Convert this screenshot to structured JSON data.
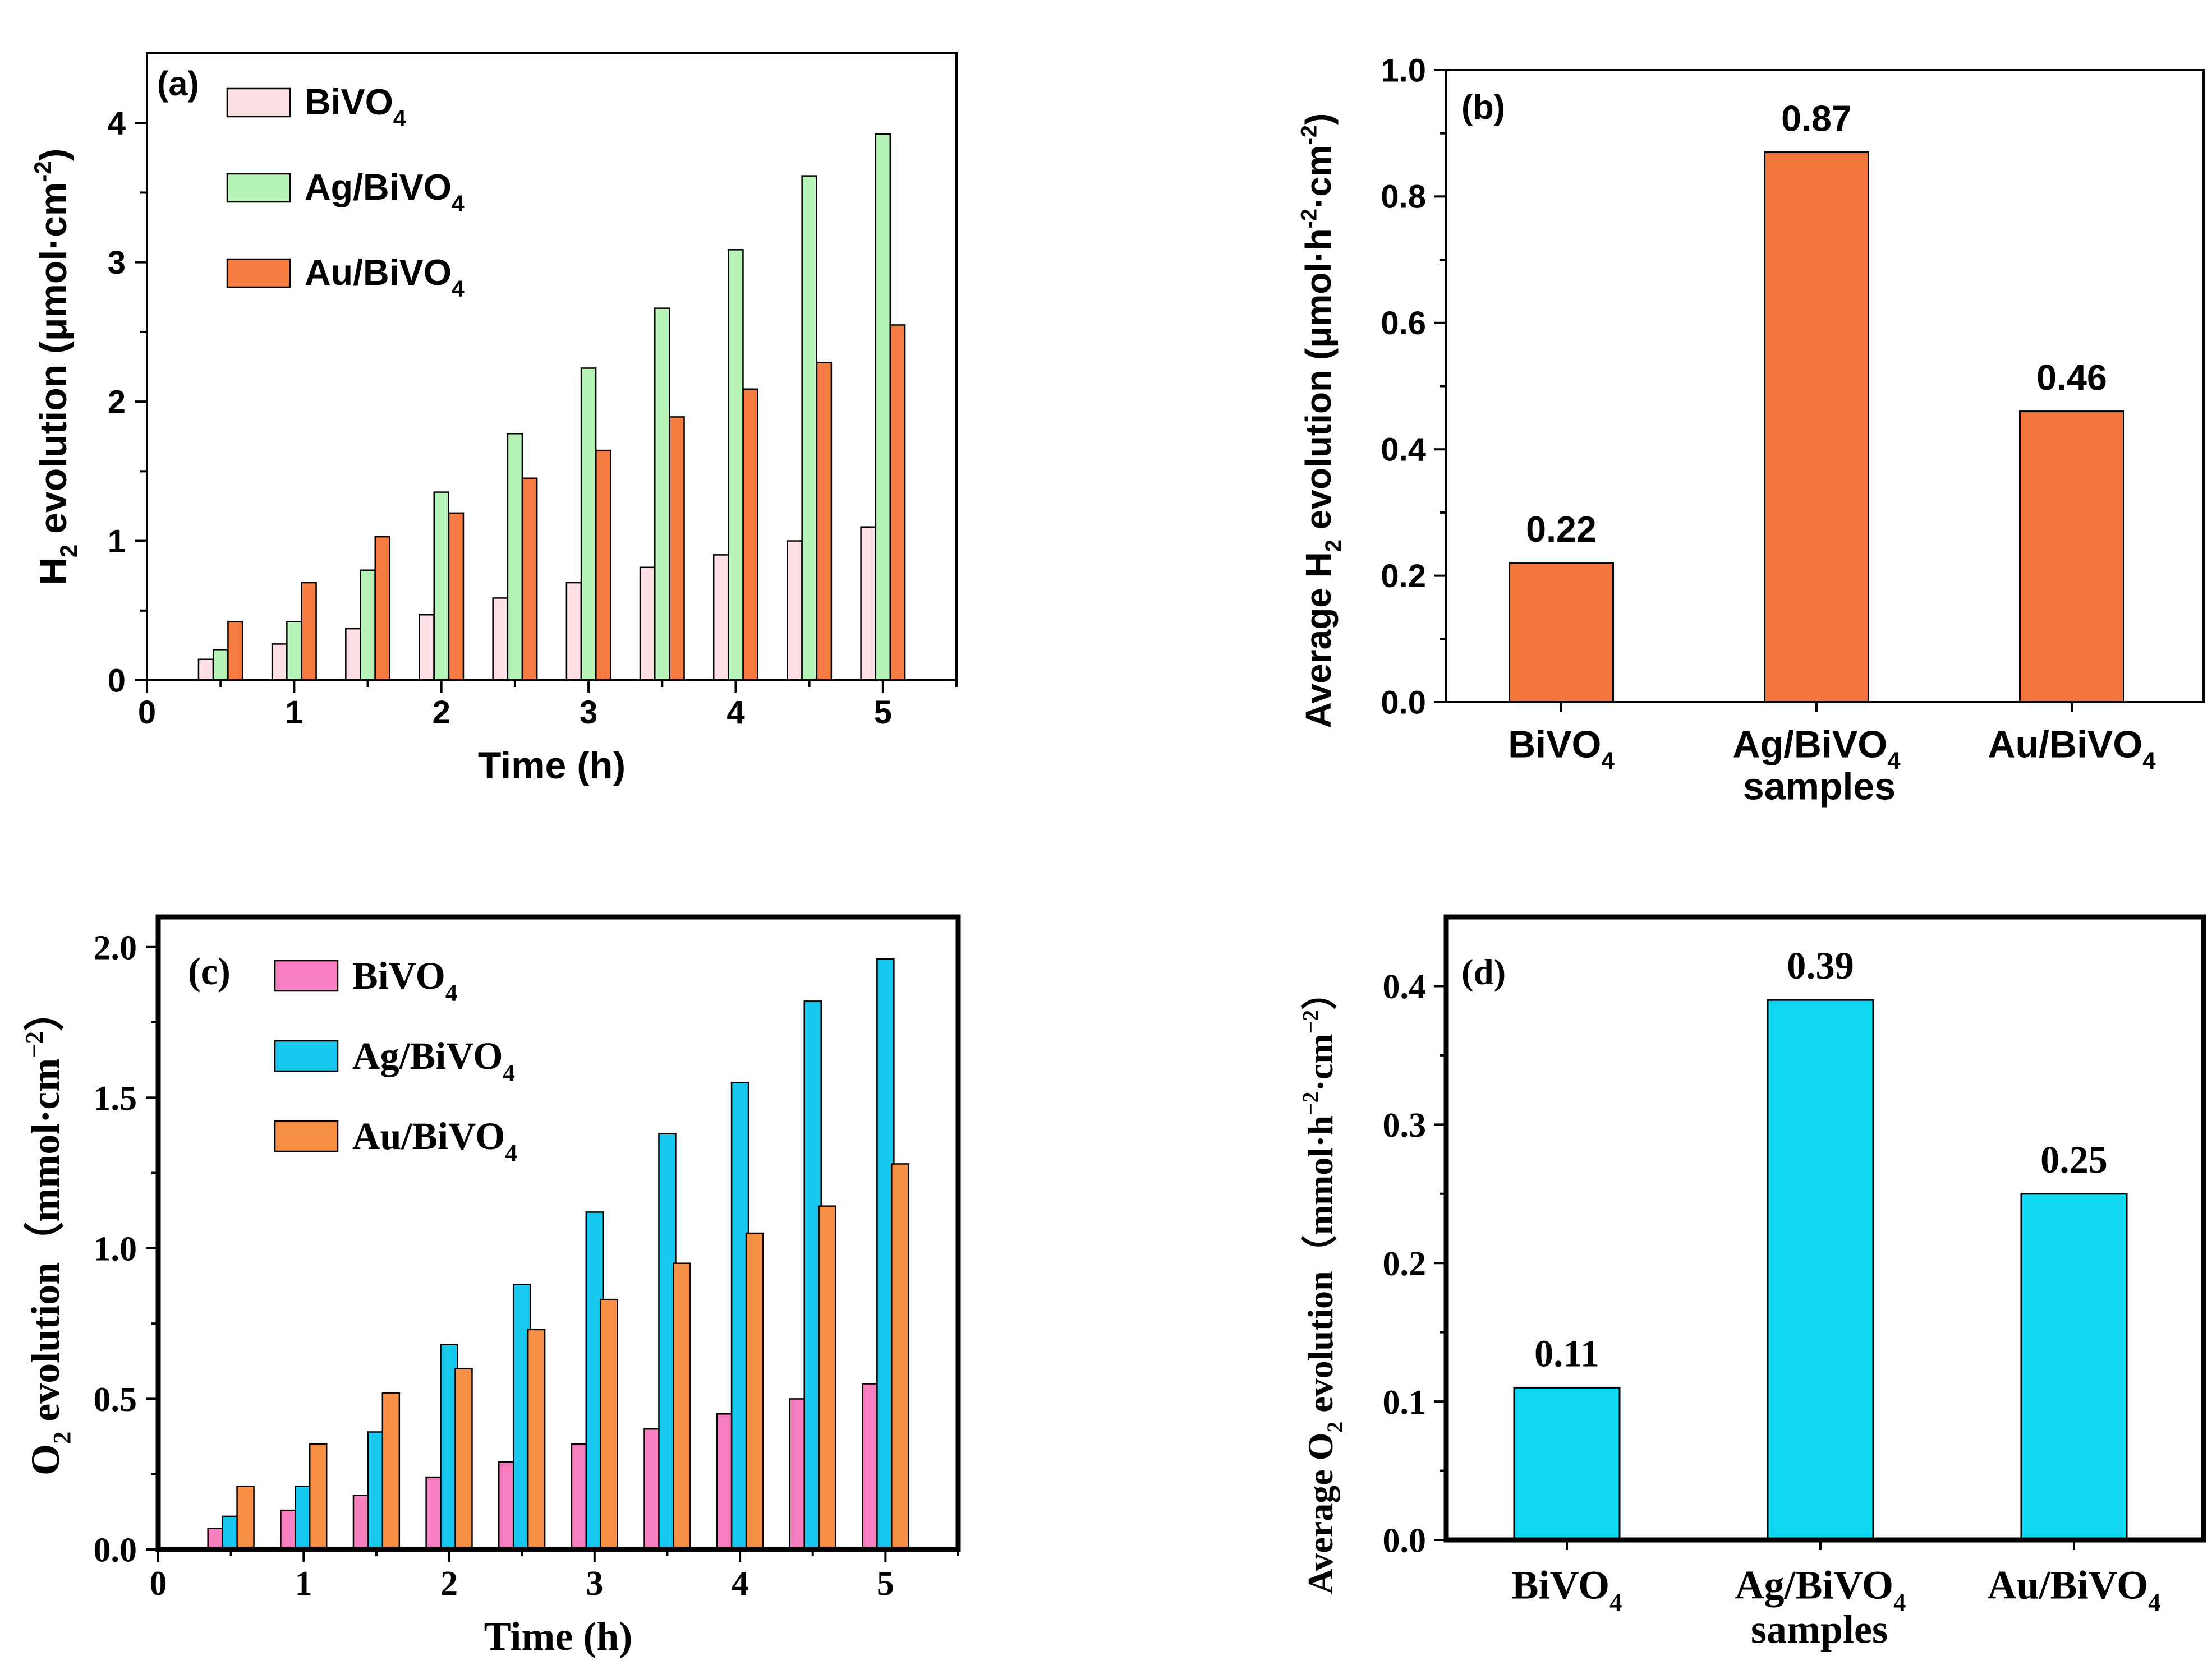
{
  "chart_data": [
    {
      "id": "a",
      "type": "bar",
      "panel_label": "(a)",
      "xlabel": "Time (h)",
      "ylabel_main": "H",
      "ylabel_sub": "2",
      "ylabel_rest": " evolution (μmol·cm",
      "ylabel_sup": "-2",
      "ylabel_end": ")",
      "xlim": [
        0,
        5.5
      ],
      "ylim": [
        0,
        4.5
      ],
      "x_ticks": [
        "0",
        "1",
        "2",
        "3",
        "4",
        "5"
      ],
      "y_ticks": [
        "0",
        "1",
        "2",
        "3",
        "4"
      ],
      "x": [
        0.5,
        1,
        1.5,
        2,
        2.5,
        3,
        3.5,
        4,
        4.5,
        5
      ],
      "series": [
        {
          "name": "BiVO",
          "sub": "4",
          "color": "#fde0e4",
          "values": [
            0.15,
            0.26,
            0.37,
            0.47,
            0.59,
            0.7,
            0.81,
            0.9,
            1.0,
            1.1
          ]
        },
        {
          "name": "Ag/BiVO",
          "sub": "4",
          "color": "#b8f4b8",
          "values": [
            0.22,
            0.42,
            0.79,
            1.35,
            1.77,
            2.24,
            2.67,
            3.09,
            3.62,
            3.92
          ]
        },
        {
          "name": "Au/BiVO",
          "sub": "4",
          "color": "#f57c42",
          "values": [
            0.42,
            0.7,
            1.03,
            1.2,
            1.45,
            1.65,
            1.89,
            2.09,
            2.28,
            2.55
          ]
        }
      ]
    },
    {
      "id": "b",
      "type": "bar",
      "panel_label": "(b)",
      "xlabel": "samples",
      "ylabel_main": "Average H",
      "ylabel_sub": "2",
      "ylabel_rest": " evolution (μmol·h",
      "ylabel_sup1": "-2",
      "ylabel_mid": "·cm",
      "ylabel_sup2": "-2",
      "ylabel_end": ")",
      "ylim": [
        0,
        1.0
      ],
      "y_ticks": [
        "0.0",
        "0.2",
        "0.4",
        "0.6",
        "0.8",
        "1.0"
      ],
      "categories": [
        {
          "name": "BiVO",
          "sub": "4"
        },
        {
          "name": "Ag/BiVO",
          "sub": "4"
        },
        {
          "name": "Au/BiVO",
          "sub": "4"
        }
      ],
      "values": [
        0.22,
        0.87,
        0.46
      ],
      "labels": [
        "0.22",
        "0.87",
        "0.46"
      ],
      "color": "#f5763a"
    },
    {
      "id": "c",
      "type": "bar",
      "panel_label": "(c)",
      "xlabel": "Time (h)",
      "ylabel_main": "O",
      "ylabel_sub": "2",
      "ylabel_rest": " evolution（mmol·cm",
      "ylabel_sup": "−2",
      "ylabel_end": "）",
      "xlim": [
        0,
        5.5
      ],
      "ylim": [
        0,
        2.1
      ],
      "x_ticks": [
        "0",
        "1",
        "2",
        "3",
        "4",
        "5"
      ],
      "y_ticks": [
        "0.0",
        "0.5",
        "1.0",
        "1.5",
        "2.0"
      ],
      "x": [
        0.5,
        1,
        1.5,
        2,
        2.5,
        3,
        3.5,
        4,
        4.5,
        5
      ],
      "series": [
        {
          "name": "BiVO",
          "sub": "4",
          "color": "#f77fbf",
          "values": [
            0.07,
            0.13,
            0.18,
            0.24,
            0.29,
            0.35,
            0.4,
            0.45,
            0.5,
            0.55
          ]
        },
        {
          "name": "Ag/BiVO",
          "sub": "4",
          "color": "#18c8ef",
          "values": [
            0.11,
            0.21,
            0.39,
            0.68,
            0.88,
            1.12,
            1.38,
            1.55,
            1.82,
            1.96
          ]
        },
        {
          "name": "Au/BiVO",
          "sub": "4",
          "color": "#f79044",
          "values": [
            0.21,
            0.35,
            0.52,
            0.6,
            0.73,
            0.83,
            0.95,
            1.05,
            1.14,
            1.28
          ]
        }
      ]
    },
    {
      "id": "d",
      "type": "bar",
      "panel_label": "(d)",
      "xlabel": "samples",
      "ylabel_main": "Average O",
      "ylabel_sub": "2",
      "ylabel_rest": " evolution（mmol·h",
      "ylabel_sup1": "−2",
      "ylabel_mid": "·cm",
      "ylabel_sup2": "−2",
      "ylabel_end": "）",
      "ylim": [
        0,
        0.45
      ],
      "y_ticks": [
        "0.0",
        "0.1",
        "0.2",
        "0.3",
        "0.4"
      ],
      "categories": [
        {
          "name": "BiVO",
          "sub": "4"
        },
        {
          "name": "Ag/BiVO",
          "sub": "4"
        },
        {
          "name": "Au/BiVO",
          "sub": "4"
        }
      ],
      "values": [
        0.11,
        0.39,
        0.25
      ],
      "labels": [
        "0.11",
        "0.39",
        "0.25"
      ],
      "color": "#0fd8f5"
    }
  ]
}
